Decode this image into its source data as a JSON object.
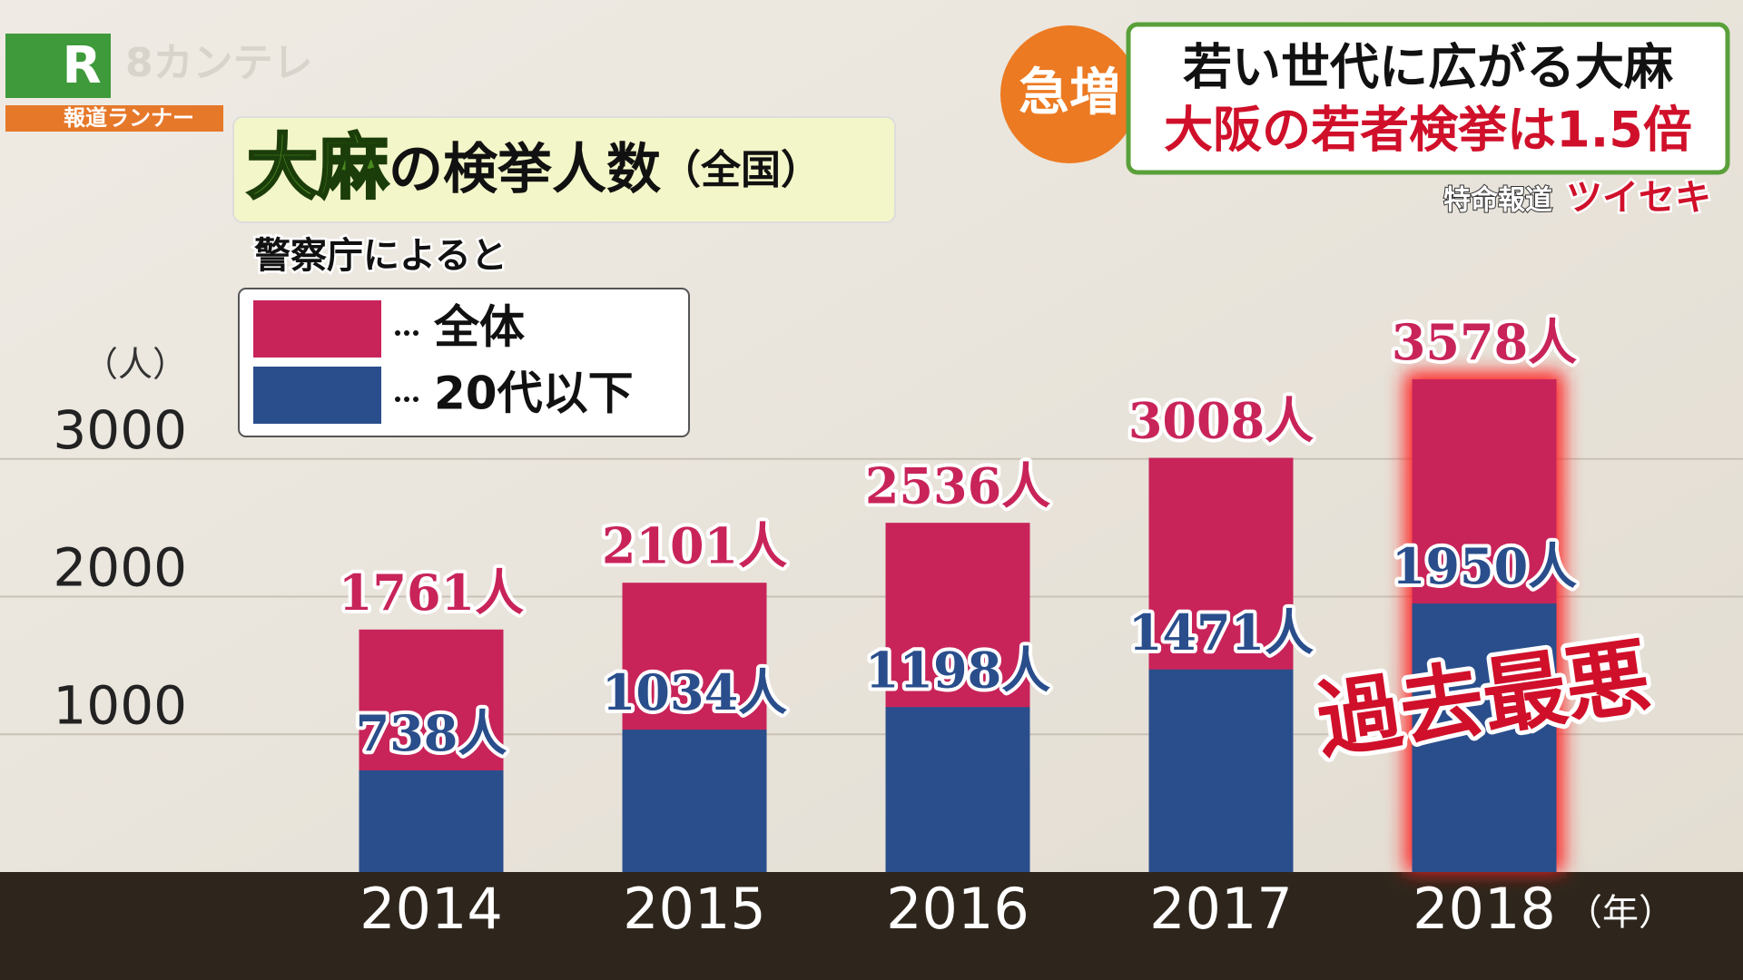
{
  "broadcast": {
    "logo_letter": "R",
    "channel": "8カンテレ",
    "program": "報道ランナー",
    "badge": "急増",
    "headline": "若い世代に広がる大麻",
    "subheadline": "大阪の若者検挙は1.5倍",
    "segment": "特命報道",
    "segment_title": "ツイセキ"
  },
  "chart_data": {
    "type": "bar",
    "title_highlight": "大麻",
    "title": "の検挙人数",
    "title_note": "（全国）",
    "subtitle": "警察庁によると",
    "y_unit": "（人）",
    "x_unit": "（年）",
    "categories": [
      "2014",
      "2015",
      "2016",
      "2017",
      "2018"
    ],
    "series": [
      {
        "name": "全体",
        "color": "#c8245a",
        "values": [
          1761,
          2101,
          2536,
          3008,
          3578
        ],
        "value_labels": [
          "1761人",
          "2101人",
          "2536人",
          "3008人",
          "3578人"
        ]
      },
      {
        "name": "20代以下",
        "color": "#2a4e8c",
        "values": [
          738,
          1034,
          1198,
          1471,
          1950
        ],
        "value_labels": [
          "738人",
          "1034人",
          "1198人",
          "1471人",
          "1950人"
        ]
      }
    ],
    "ylim": [
      0,
      4000
    ],
    "yticks": [
      1000,
      2000,
      3000
    ],
    "grid": true,
    "annotation": "過去最悪"
  }
}
